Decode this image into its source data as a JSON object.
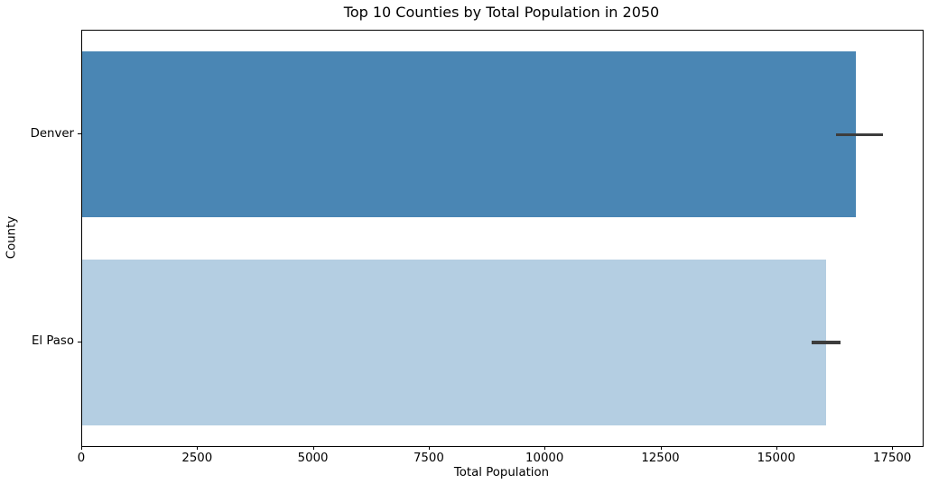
{
  "chart_data": {
    "type": "bar",
    "orientation": "horizontal",
    "title": "Top 10 Counties by Total Population in 2050",
    "xlabel": "Total Population",
    "ylabel": "County",
    "categories": [
      "Denver",
      "El Paso"
    ],
    "values": [
      16700,
      16050
    ],
    "error_bars": [
      [
        16270,
        17280
      ],
      [
        15740,
        16370
      ]
    ],
    "bar_colors": [
      "#4a86b4",
      "#b4cee2"
    ],
    "error_bar_color": "#3d3d3d",
    "xlim": [
      0,
      18140
    ],
    "xticks": [
      0,
      2500,
      5000,
      7500,
      10000,
      12500,
      15000,
      17500
    ],
    "bar_fraction_of_slot": 0.8,
    "grid": false,
    "legend": "none",
    "background_color": "#ffffff",
    "frame_color": "#000000"
  }
}
